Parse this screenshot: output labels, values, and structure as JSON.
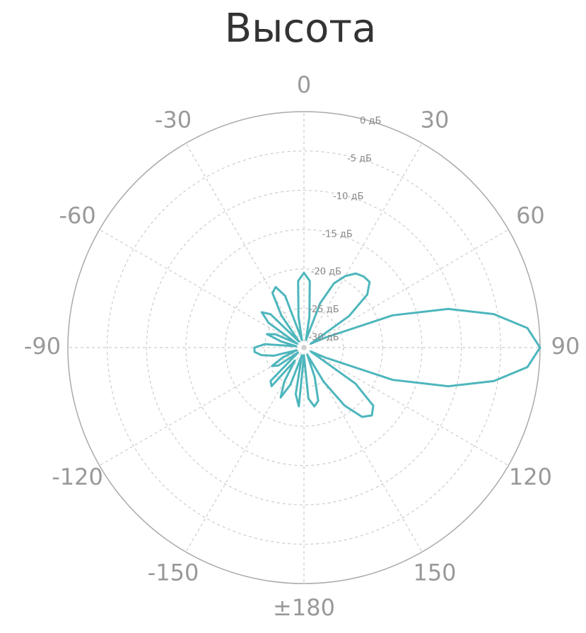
{
  "chart_data": {
    "type": "polar",
    "title": "Высота",
    "angles": [
      -180,
      -175,
      -170,
      -165,
      -160,
      -155,
      -150,
      -145,
      -140,
      -135,
      -130,
      -125,
      -120,
      -115,
      -110,
      -105,
      -100,
      -95,
      -90,
      -85,
      -80,
      -75,
      -70,
      -65,
      -60,
      -55,
      -50,
      -45,
      -40,
      -35,
      -30,
      -25,
      -20,
      -15,
      -10,
      -5,
      0,
      5,
      10,
      15,
      20,
      25,
      30,
      35,
      40,
      45,
      50,
      55,
      60,
      65,
      70,
      75,
      80,
      85,
      90,
      95,
      100,
      105,
      110,
      115,
      120,
      125,
      130,
      135,
      140,
      145,
      150,
      155,
      160,
      165,
      170,
      175
    ],
    "values": [
      -29,
      -22.5,
      -24,
      -29,
      -25,
      -23,
      -25,
      -28,
      -23.6,
      -24,
      -29,
      -26,
      -25.3,
      -27,
      -29,
      -26,
      -24.5,
      -23.7,
      -23.7,
      -25,
      -29,
      -27,
      -25,
      -26,
      -29,
      -24.5,
      -23,
      -24,
      -29,
      -25,
      -22,
      -21.5,
      -23,
      -29,
      -26,
      -21.5,
      -20.5,
      -21.5,
      -26,
      -29,
      -24,
      -21,
      -19.5,
      -18.5,
      -18.2,
      -18.2,
      -19.5,
      -23,
      -29,
      -27,
      -18,
      -11,
      -5.5,
      -1.5,
      0,
      -1.5,
      -5.5,
      -11,
      -18,
      -27,
      -29,
      -22,
      -18.5,
      -17.8,
      -18.5,
      -21,
      -25,
      -29,
      -26,
      -23,
      -22.4,
      -23.5
    ],
    "color": "#4db6bc",
    "rlim": [
      -30,
      0
    ],
    "rticks": [
      {
        "value": 0,
        "label": "0 дБ"
      },
      {
        "value": -5,
        "label": "-5 дБ"
      },
      {
        "value": -10,
        "label": "-10 дБ"
      },
      {
        "value": -15,
        "label": "-15 дБ"
      },
      {
        "value": -20,
        "label": "-20 дБ"
      },
      {
        "value": -25,
        "label": "-25 дБ"
      },
      {
        "value": -30,
        "label": "-30 дБ"
      }
    ],
    "angleticks": [
      0,
      30,
      60,
      90,
      120,
      150,
      {
        "value": 180,
        "label": "±180"
      },
      -150,
      -120,
      -90,
      -60,
      -30
    ],
    "grid": true
  }
}
